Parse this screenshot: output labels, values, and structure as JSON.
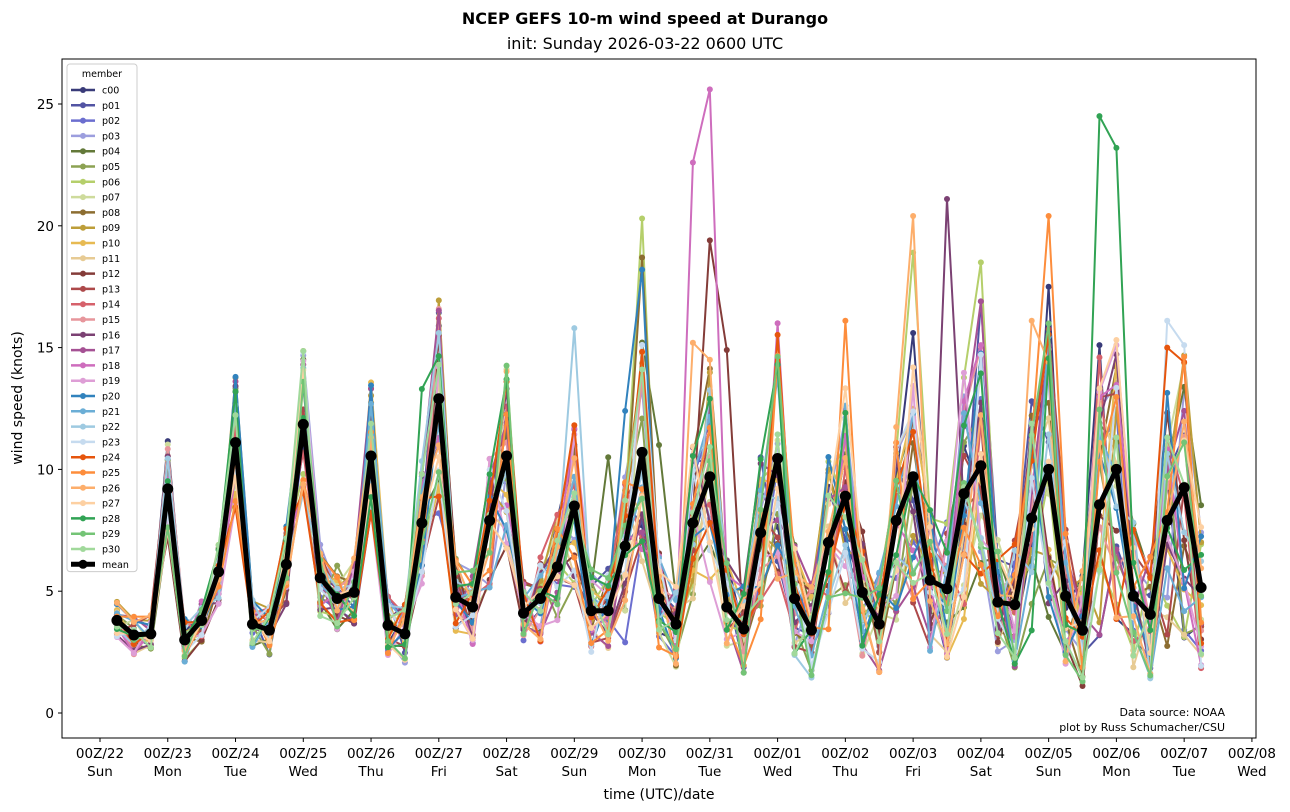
{
  "chart_data": {
    "type": "line",
    "title": "NCEP GEFS 10-m wind speed at Durango",
    "subtitle": "init: Sunday 2026-03-22 0600 UTC",
    "xlabel": "time (UTC)/date",
    "ylabel": "wind speed (knots)",
    "ylim": [
      -1,
      27
    ],
    "yticks": [
      0,
      5,
      10,
      15,
      20,
      25
    ],
    "x_start": "2026-03-22 06Z",
    "x_step_hours": 6,
    "xlim_days_from_22_00Z": [
      -0.47,
      17.07
    ],
    "xticks": [
      {
        "line1": "00Z/22",
        "line2": "Sun"
      },
      {
        "line1": "00Z/23",
        "line2": "Mon"
      },
      {
        "line1": "00Z/24",
        "line2": "Tue"
      },
      {
        "line1": "00Z/25",
        "line2": "Wed"
      },
      {
        "line1": "00Z/26",
        "line2": "Thu"
      },
      {
        "line1": "00Z/27",
        "line2": "Fri"
      },
      {
        "line1": "00Z/28",
        "line2": "Sat"
      },
      {
        "line1": "00Z/29",
        "line2": "Sun"
      },
      {
        "line1": "00Z/30",
        "line2": "Mon"
      },
      {
        "line1": "00Z/31",
        "line2": "Tue"
      },
      {
        "line1": "00Z/01",
        "line2": "Wed"
      },
      {
        "line1": "00Z/02",
        "line2": "Thu"
      },
      {
        "line1": "00Z/03",
        "line2": "Fri"
      },
      {
        "line1": "00Z/04",
        "line2": "Sat"
      },
      {
        "line1": "00Z/05",
        "line2": "Sun"
      },
      {
        "line1": "00Z/06",
        "line2": "Mon"
      },
      {
        "line1": "00Z/07",
        "line2": "Tue"
      },
      {
        "line1": "00Z/08",
        "line2": "Wed"
      }
    ],
    "legend": {
      "title": "member",
      "placement": "upper-left"
    },
    "credit": [
      "Data source: NOAA",
      "plot by Russ Schumacher/CSU"
    ],
    "mean": {
      "name": "mean",
      "color": "#000000",
      "values": [
        3.8,
        3.2,
        3.25,
        9.2,
        3.0,
        3.8,
        5.8,
        11.1,
        3.65,
        3.4,
        6.1,
        11.85,
        5.55,
        4.7,
        4.95,
        10.55,
        3.6,
        3.25,
        7.8,
        12.9,
        4.75,
        4.35,
        7.9,
        10.55,
        4.1,
        4.7,
        6.0,
        8.5,
        4.2,
        4.2,
        6.85,
        10.7,
        4.7,
        3.65,
        7.8,
        9.7,
        4.35,
        3.45,
        7.4,
        10.45,
        4.7,
        3.4,
        7.0,
        8.9,
        4.95,
        3.65,
        7.9,
        9.7,
        5.45,
        5.1,
        9.0,
        10.15,
        4.55,
        4.45,
        8.0,
        10.0,
        4.8,
        3.4,
        8.55,
        10.0,
        4.8,
        4.05,
        7.9,
        9.25,
        5.15
      ]
    },
    "members": [
      {
        "name": "c00",
        "color": "#393b79",
        "spikes": {
          "47": 15.6,
          "55": 17.5,
          "58": 15.1
        }
      },
      {
        "name": "p01",
        "color": "#5254a3",
        "spikes": {
          "51": 16.9
        }
      },
      {
        "name": "p02",
        "color": "#6b6ecf",
        "spikes": {
          "19": 8.2,
          "30": 2.9
        }
      },
      {
        "name": "p03",
        "color": "#9c9ede",
        "spikes": {
          "43": 12.1
        }
      },
      {
        "name": "p04",
        "color": "#637939",
        "spikes": {
          "29": 10.5,
          "32": 11.0
        }
      },
      {
        "name": "p05",
        "color": "#8ca252",
        "spikes": {}
      },
      {
        "name": "p06",
        "color": "#b5cf6b",
        "spikes": {
          "31": 20.3,
          "47": 18.9,
          "51": 18.5
        }
      },
      {
        "name": "p07",
        "color": "#cedb9c",
        "spikes": {}
      },
      {
        "name": "p08",
        "color": "#8c6d31",
        "spikes": {
          "31": 18.7
        }
      },
      {
        "name": "p09",
        "color": "#bd9e39",
        "spikes": {}
      },
      {
        "name": "p10",
        "color": "#e7ba52",
        "spikes": {}
      },
      {
        "name": "p11",
        "color": "#e7cb94",
        "spikes": {}
      },
      {
        "name": "p12",
        "color": "#843c39",
        "spikes": {
          "35": 19.4,
          "36": 14.9
        }
      },
      {
        "name": "p13",
        "color": "#ad494a",
        "spikes": {}
      },
      {
        "name": "p14",
        "color": "#d6616b",
        "spikes": {
          "19": 16.2,
          "58": 14.6
        }
      },
      {
        "name": "p15",
        "color": "#e7969c",
        "spikes": {}
      },
      {
        "name": "p16",
        "color": "#7b4173",
        "spikes": {
          "49": 21.1
        }
      },
      {
        "name": "p17",
        "color": "#a55194",
        "spikes": {
          "11": 14.3,
          "51": 16.9
        }
      },
      {
        "name": "p18",
        "color": "#ce6dbd",
        "spikes": {
          "34": 22.6,
          "35": 25.6,
          "39": 16.0
        }
      },
      {
        "name": "p19",
        "color": "#de9ed6",
        "spikes": {
          "59": 15.1
        }
      },
      {
        "name": "p20",
        "color": "#3182bd",
        "spikes": {
          "30": 12.4,
          "31": 18.2
        }
      },
      {
        "name": "p21",
        "color": "#6baed6",
        "spikes": {}
      },
      {
        "name": "p22",
        "color": "#9ecae1",
        "spikes": {
          "27": 15.8
        }
      },
      {
        "name": "p23",
        "color": "#c6dbef",
        "spikes": {
          "62": 16.1,
          "63": 15.1
        }
      },
      {
        "name": "p24",
        "color": "#e6550d",
        "spikes": {
          "62": 15.0,
          "63": 14.4
        }
      },
      {
        "name": "p25",
        "color": "#fd8d3c",
        "spikes": {
          "43": 16.1,
          "55": 20.4
        }
      },
      {
        "name": "p26",
        "color": "#fdae6b",
        "spikes": {
          "34": 15.2,
          "35": 14.5,
          "47": 20.4,
          "54": 16.1
        }
      },
      {
        "name": "p27",
        "color": "#fdd0a2",
        "spikes": {}
      },
      {
        "name": "p28",
        "color": "#31a354",
        "spikes": {
          "7": 13.2,
          "18": 13.3,
          "23": 13.7,
          "39": 14.3,
          "58": 24.5,
          "59": 23.2
        }
      },
      {
        "name": "p29",
        "color": "#74c476",
        "spikes": {
          "11": 13.6
        }
      },
      {
        "name": "p30",
        "color": "#a1d99b",
        "spikes": {}
      }
    ]
  }
}
